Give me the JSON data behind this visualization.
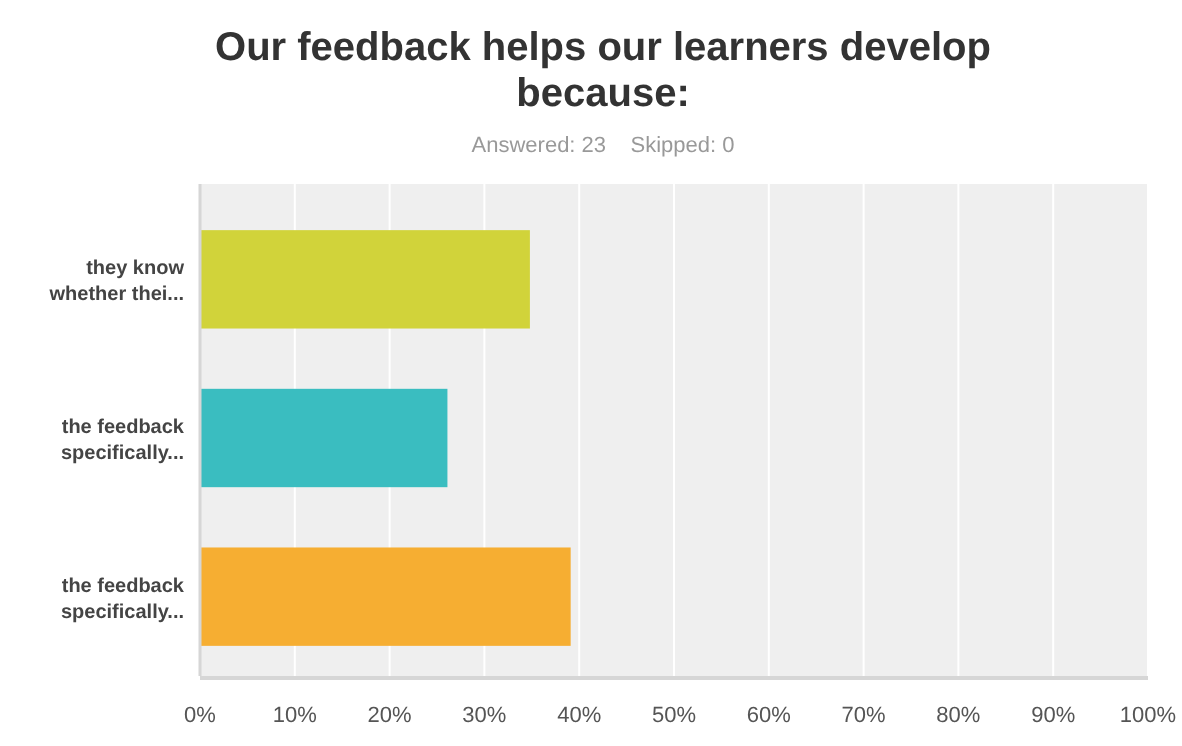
{
  "chart_data": {
    "type": "bar",
    "orientation": "horizontal",
    "title": "Our feedback helps our learners develop because:",
    "subtitle": "Answered: 23    Skipped: 0",
    "categories": [
      "they know\nwhether thei...",
      "the feedback\nspecifically...",
      "the feedback\nspecifically..."
    ],
    "values": [
      34.8,
      26.1,
      39.1
    ],
    "colors": [
      "#d1d33a",
      "#3abdc0",
      "#f6ae32"
    ],
    "xlim": [
      0,
      100
    ],
    "xticks": [
      {
        "value": 0,
        "label": "0%"
      },
      {
        "value": 10,
        "label": "10%"
      },
      {
        "value": 20,
        "label": "20%"
      },
      {
        "value": 30,
        "label": "30%"
      },
      {
        "value": 40,
        "label": "40%"
      },
      {
        "value": 50,
        "label": "50%"
      },
      {
        "value": 60,
        "label": "60%"
      },
      {
        "value": 70,
        "label": "70%"
      },
      {
        "value": 80,
        "label": "80%"
      },
      {
        "value": 90,
        "label": "90%"
      },
      {
        "value": 100,
        "label": "100%"
      }
    ],
    "grid": "x"
  }
}
